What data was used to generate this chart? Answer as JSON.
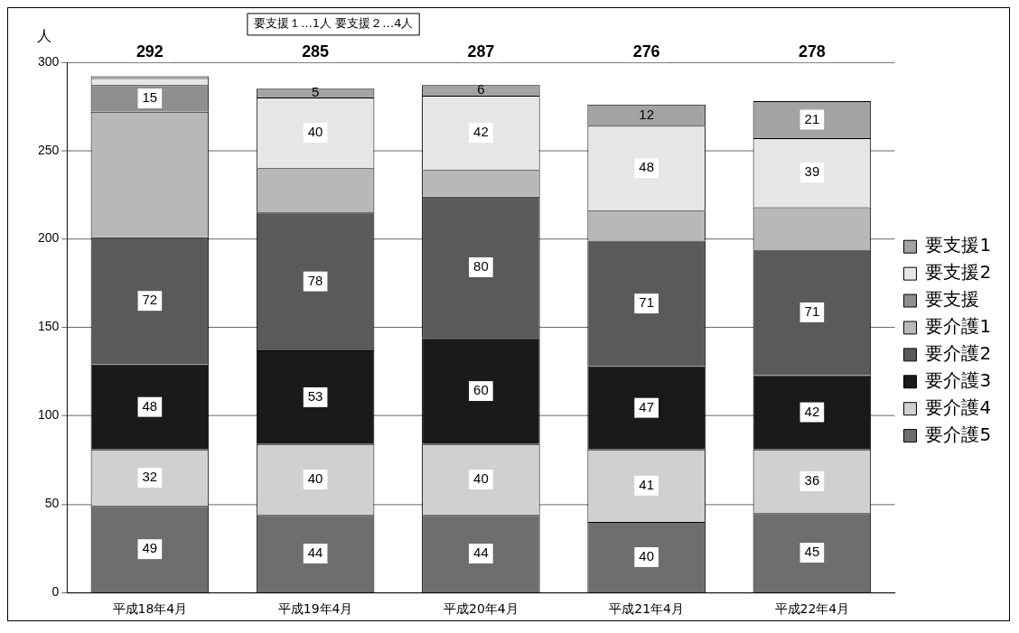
{
  "chart_data": {
    "type": "bar",
    "stacked": true,
    "ylabel": "人",
    "categories": [
      "平成18年4月",
      "平成19年4月",
      "平成20年4月",
      "平成21年4月",
      "平成22年4月"
    ],
    "series": [
      {
        "name": "要介護5",
        "color": "#6e6e6e",
        "values": [
          49,
          44,
          44,
          40,
          45
        ],
        "value_labels": [
          "49",
          "44",
          "44",
          "40",
          "45"
        ]
      },
      {
        "name": "要介護4",
        "color": "#d0d0d0",
        "values": [
          32,
          40,
          40,
          41,
          36
        ],
        "value_labels": [
          "32",
          "40",
          "40",
          "41",
          "36"
        ]
      },
      {
        "name": "要介護3",
        "color": "#1a1a1a",
        "values": [
          48,
          53,
          60,
          47,
          42
        ],
        "value_labels": [
          "48",
          "53",
          "60",
          "47",
          "42"
        ]
      },
      {
        "name": "要介護2",
        "color": "#5a5a5a",
        "values": [
          72,
          78,
          80,
          71,
          71
        ],
        "value_labels": [
          "72",
          "78",
          "80",
          "71",
          "71"
        ]
      },
      {
        "name": "要介護1",
        "color": "#b8b8b8",
        "values": [
          71,
          25,
          15,
          17,
          24
        ]
      },
      {
        "name": "要支援",
        "color": "#8f8f8f",
        "values": [
          15,
          null,
          null,
          null,
          null
        ],
        "value_labels": [
          "15",
          null,
          null,
          null,
          null
        ]
      },
      {
        "name": "要支援2",
        "color": "#e6e6e6",
        "values": [
          4,
          40,
          42,
          48,
          39
        ],
        "value_labels": [
          null,
          "40",
          "42",
          "48",
          "39"
        ]
      },
      {
        "name": "要支援1",
        "color": "#a3a3a3",
        "values": [
          1,
          5,
          6,
          12,
          21
        ],
        "value_labels": [
          null,
          "5",
          "6",
          "12",
          "21"
        ]
      }
    ],
    "totals": [
      "292",
      "285",
      "287",
      "276",
      "278"
    ],
    "annotations": [
      "要支援１…1人 要支援２…4人"
    ],
    "ylim": [
      0,
      300
    ],
    "yticks": [
      0,
      50,
      100,
      150,
      200,
      250,
      300
    ],
    "grid": "y",
    "legend": "right"
  }
}
